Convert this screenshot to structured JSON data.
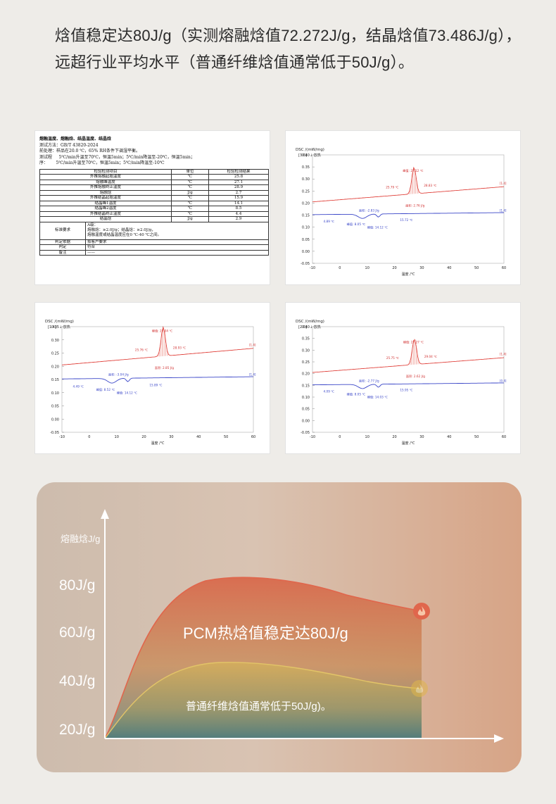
{
  "headline": {
    "line1": "焓值稳定达80J/g（实测熔融焓值72.272J/g，结晶焓值73.486J/g），",
    "line2": "远超行业平均水平（普通纤维焓值通常低于50J/g）。"
  },
  "report": {
    "title": "熔融温度、熔融焓、结晶温度、结晶焓",
    "method": "测试方法：GB/T 43820-2024",
    "pretreat": "前处理：样品在20.0 ℃，65% RH条件下调湿平衡。",
    "proc_label": "测试程",
    "proc_label2": "序：",
    "proc1": "5℃/min升温至70℃，恒温5min；5℃/min降温至-20℃，恒温5min；",
    "proc2": "5℃/min升温至70℃，恒温5min；5℃/min降温至-10℃",
    "headers": [
      "检验检测项目",
      "单位",
      "检验检测结果"
    ],
    "rows": [
      [
        "外推熔融起始温度",
        "℃",
        "25.8"
      ],
      [
        "熔融峰温度",
        "℃",
        "27.1"
      ],
      [
        "外推熔融终止温度",
        "℃",
        "28.9"
      ],
      [
        "熔融焓",
        "J/g",
        "2.7"
      ],
      [
        "外推结晶起始温度",
        "℃",
        "15.9"
      ],
      [
        "结晶峰1温度",
        "℃",
        "14.1"
      ],
      [
        "结晶峰2温度",
        "℃",
        "8.5"
      ],
      [
        "外推结晶终止温度",
        "℃",
        "4.4"
      ],
      [
        "结晶焓",
        "J/g",
        "2.9"
      ]
    ],
    "req_label": "标准要求",
    "req_lines": [
      "A级：",
      "熔融焓：≥2.0J/g；结晶焓：≥2.0J/g，",
      "熔融温度或结晶温度应在0 ℃-40 ℃之间。"
    ],
    "basis_label": "判定依据",
    "basis_value": "按客户要求",
    "judge_label": "判定",
    "judge_value": "符合",
    "note_label": "备注",
    "note_value": "——"
  },
  "dsc_charts": [
    {
      "ylabel": "DSC /(mW/mg)",
      "scale": "[3.6]",
      "exo": "↓ 放热",
      "xlabel": "温度 /℃",
      "yticks": [
        "0.40",
        "0.35",
        "0.30",
        "0.25",
        "0.20",
        "0.15",
        "0.10",
        "0.05",
        "0.00",
        "-0.05"
      ],
      "xticks": [
        "-10",
        "0",
        "10",
        "20",
        "30",
        "40",
        "50",
        "60"
      ],
      "peak": "峰值: 27.12 ℃",
      "onset": "25.79 ℃",
      "end": "28.83 ℃",
      "area1": "面积: 2.76 J/g",
      "area2": "面积: -2.83 J/g",
      "c1": "4.89 ℃",
      "c2": "峰值: 8.05 ℃",
      "c3": "峰值: 14.12 ℃",
      "c4": "15.72 ℃",
      "seg_red": "[1.4]",
      "seg_blue": "[1.4]"
    },
    {
      "ylabel": "DSC /(mW/mg)",
      "scale": "[1.4]",
      "exo": "↓ 放热",
      "xlabel": "温度 /℃",
      "yticks": [
        "0.35",
        "0.30",
        "0.25",
        "0.20",
        "0.15",
        "0.10",
        "0.05",
        "0.00",
        "-0.05"
      ],
      "xticks": [
        "-10",
        "0",
        "10",
        "20",
        "30",
        "40",
        "50",
        "60"
      ],
      "peak": "峰值: 27.04 ℃",
      "onset": "25.76 ℃",
      "end": "28.93 ℃",
      "area1": "面积: 2.85 J/g",
      "area2": "面积: -3.04 J/g",
      "c1": "4.49 ℃",
      "c2": "峰值: 8.52 ℃",
      "c3": "峰值: 14.12 ℃",
      "c4": "15.89 ℃",
      "seg_red": "[1.4]",
      "seg_blue": "[1.4]"
    },
    {
      "ylabel": "DSC /(mW/mg)",
      "scale": "[2.6]",
      "exo": "↓ 放热",
      "xlabel": "温度 /℃",
      "yticks": [
        "0.40",
        "0.35",
        "0.30",
        "0.25",
        "0.20",
        "0.15",
        "0.10",
        "0.05",
        "0.00",
        "-0.05"
      ],
      "xticks": [
        "-10",
        "0",
        "10",
        "20",
        "30",
        "40",
        "50",
        "60"
      ],
      "peak": "峰值: 27.27 ℃",
      "onset": "25.75 ℃",
      "end": "29.04 ℃",
      "area1": "面积: 2.62 J/g",
      "area2": "面积: -2.77 J/g",
      "c1": "4.09 ℃",
      "c2": "峰值: 8.05 ℃",
      "c3": "峰值: 14.03 ℃",
      "c4": "15.95 ℃",
      "seg_red": "[1.4]",
      "seg_blue": "[0.4]"
    }
  ],
  "comparison": {
    "ytitle": "熔融焓J/g",
    "yticks": [
      "80J/g",
      "60J/g",
      "40J/g",
      "20J/g"
    ],
    "pcm_label": "PCM热焓值稳定达80J/g",
    "normal_label": "普通纤维焓值通常低于50J/g)。",
    "flame_icon": "flame-icon"
  }
}
